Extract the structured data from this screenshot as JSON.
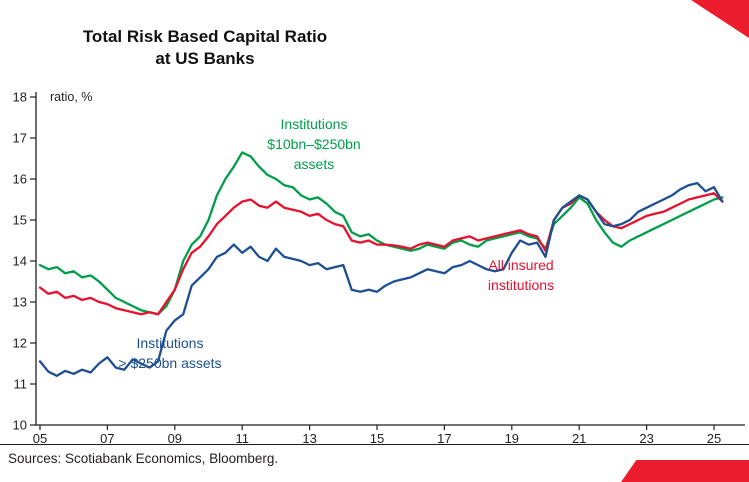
{
  "page": {
    "title_line1": "Total Risk Based Capital Ratio",
    "title_line2": "at US Banks",
    "y_axis_label": "ratio, %",
    "source": "Sources: Scotiabank Economics, Bloomberg.",
    "brand_color": "#eb1c2d"
  },
  "chart_data": {
    "type": "line",
    "title": "Total Risk Based Capital Ratio at US Banks",
    "ylabel": "ratio, %",
    "ylim": [
      10,
      18
    ],
    "yticks": [
      10,
      11,
      12,
      13,
      14,
      15,
      16,
      17,
      18
    ],
    "xlim": [
      2005,
      2025.5
    ],
    "x_start": 2005,
    "x_step": 0.25,
    "xtick_years": [
      2005,
      2007,
      2009,
      2011,
      2013,
      2015,
      2017,
      2019,
      2021,
      2023,
      2025
    ],
    "xtick_labels": [
      "05",
      "07",
      "09",
      "11",
      "13",
      "15",
      "17",
      "19",
      "21",
      "23",
      "25"
    ],
    "grid": false,
    "legend": "inline annotations",
    "series": [
      {
        "name": "Institutions $10bn–$250bn assets",
        "color": "#009e49",
        "annotation_lines": [
          "Institutions",
          "$10bn–$250bn",
          "assets"
        ],
        "values": [
          13.9,
          13.8,
          13.85,
          13.7,
          13.75,
          13.6,
          13.65,
          13.5,
          13.3,
          13.1,
          13.0,
          12.9,
          12.8,
          12.75,
          12.7,
          12.9,
          13.3,
          14.0,
          14.4,
          14.6,
          15.0,
          15.6,
          16.0,
          16.3,
          16.65,
          16.55,
          16.3,
          16.1,
          16.0,
          15.85,
          15.8,
          15.6,
          15.5,
          15.55,
          15.4,
          15.2,
          15.1,
          14.7,
          14.6,
          14.65,
          14.5,
          14.4,
          14.35,
          14.3,
          14.25,
          14.3,
          14.4,
          14.35,
          14.3,
          14.45,
          14.5,
          14.4,
          14.35,
          14.5,
          14.55,
          14.6,
          14.65,
          14.7,
          14.6,
          14.55,
          14.3,
          14.9,
          15.1,
          15.3,
          15.55,
          15.4,
          15.0,
          14.7,
          14.45,
          14.35,
          14.5,
          14.6,
          14.7,
          14.8,
          14.9,
          15.0,
          15.1,
          15.2,
          15.3,
          15.4,
          15.5,
          15.55
        ]
      },
      {
        "name": "All insured institutions",
        "color": "#e8112d",
        "annotation_lines": [
          "All insured",
          "institutions"
        ],
        "values": [
          13.35,
          13.2,
          13.25,
          13.1,
          13.15,
          13.05,
          13.1,
          13.0,
          12.95,
          12.85,
          12.8,
          12.75,
          12.7,
          12.75,
          12.7,
          13.0,
          13.3,
          13.8,
          14.2,
          14.35,
          14.6,
          14.9,
          15.1,
          15.3,
          15.45,
          15.5,
          15.35,
          15.3,
          15.45,
          15.3,
          15.25,
          15.2,
          15.1,
          15.15,
          15.0,
          14.9,
          14.85,
          14.5,
          14.45,
          14.5,
          14.4,
          14.4,
          14.38,
          14.35,
          14.3,
          14.4,
          14.45,
          14.4,
          14.35,
          14.5,
          14.55,
          14.6,
          14.5,
          14.55,
          14.6,
          14.65,
          14.7,
          14.75,
          14.65,
          14.6,
          14.25,
          15.0,
          15.3,
          15.4,
          15.6,
          15.5,
          15.2,
          15.0,
          14.85,
          14.8,
          14.9,
          15.0,
          15.1,
          15.15,
          15.2,
          15.3,
          15.4,
          15.5,
          15.55,
          15.6,
          15.65,
          15.45
        ]
      },
      {
        "name": "Institutions > $250bn assets",
        "color": "#1d4f91",
        "annotation_lines": [
          "Institutions",
          "> $250bn assets"
        ],
        "values": [
          11.55,
          11.3,
          11.2,
          11.32,
          11.25,
          11.35,
          11.28,
          11.5,
          11.65,
          11.4,
          11.35,
          11.6,
          11.5,
          11.4,
          11.55,
          12.3,
          12.55,
          12.7,
          13.4,
          13.6,
          13.8,
          14.1,
          14.2,
          14.4,
          14.2,
          14.35,
          14.1,
          14.0,
          14.3,
          14.1,
          14.05,
          14.0,
          13.9,
          13.95,
          13.8,
          13.85,
          13.9,
          13.3,
          13.25,
          13.3,
          13.25,
          13.4,
          13.5,
          13.55,
          13.6,
          13.7,
          13.8,
          13.75,
          13.7,
          13.85,
          13.9,
          14.0,
          13.9,
          13.8,
          13.75,
          13.8,
          14.2,
          14.5,
          14.4,
          14.45,
          14.1,
          15.0,
          15.3,
          15.45,
          15.6,
          15.5,
          15.2,
          14.9,
          14.85,
          14.9,
          15.0,
          15.2,
          15.3,
          15.4,
          15.5,
          15.6,
          15.75,
          15.85,
          15.9,
          15.7,
          15.8,
          15.45
        ]
      }
    ]
  }
}
